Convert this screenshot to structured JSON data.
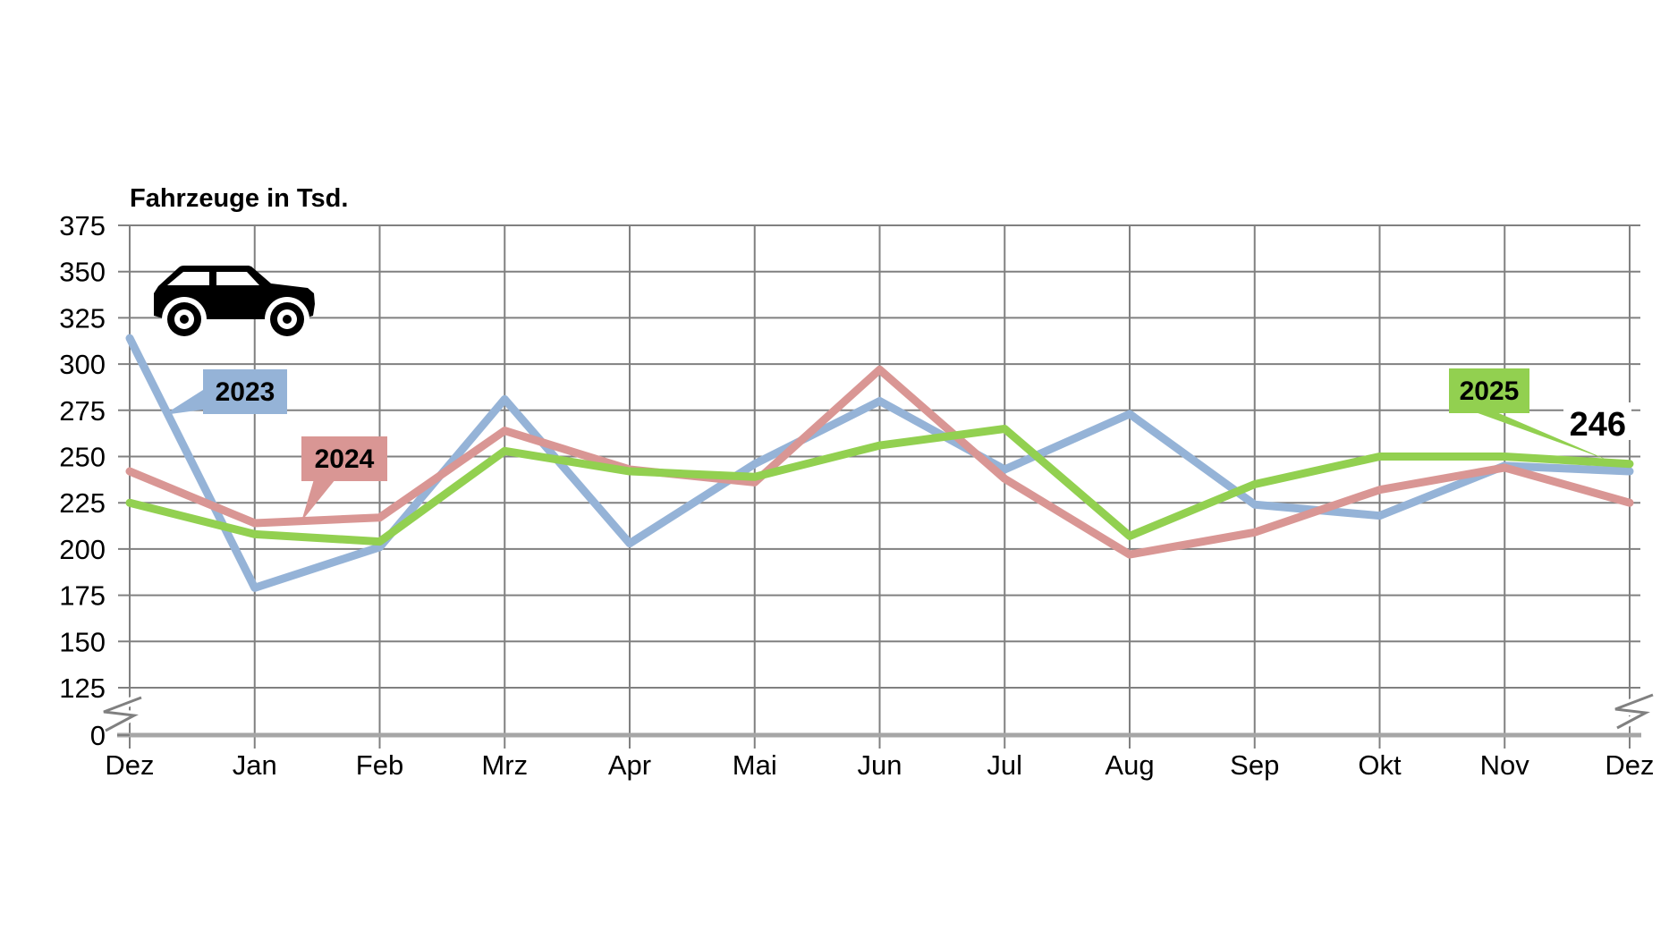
{
  "title": "Fahrzeuge in Tsd.",
  "chart_data": {
    "type": "line",
    "title": "Fahrzeuge in Tsd.",
    "unit_icon": "car-icon",
    "categories": [
      "Dez",
      "Jan",
      "Feb",
      "Mrz",
      "Apr",
      "Mai",
      "Jun",
      "Jul",
      "Aug",
      "Sep",
      "Okt",
      "Nov",
      "Dez"
    ],
    "series": [
      {
        "name": "2023",
        "color": "#95B3D7",
        "values": [
          314,
          179,
          201,
          281,
          203,
          246,
          280,
          243,
          273,
          224,
          218,
          245,
          242
        ]
      },
      {
        "name": "2024",
        "color": "#D99694",
        "values": [
          242,
          214,
          217,
          264,
          243,
          236,
          297,
          238,
          197,
          209,
          232,
          244,
          225
        ]
      },
      {
        "name": "2025",
        "color": "#92D050",
        "values": [
          225,
          208,
          204,
          253,
          242,
          239,
          256,
          265,
          207,
          235,
          250,
          250,
          246
        ]
      }
    ],
    "y_axis": {
      "ticks": [
        375,
        350,
        325,
        300,
        275,
        250,
        225,
        200,
        175,
        150,
        125,
        0
      ],
      "axis_break_between": [
        0,
        125
      ]
    },
    "x_axis": {
      "ticks": [
        "Dez",
        "Jan",
        "Feb",
        "Mrz",
        "Apr",
        "Mai",
        "Jun",
        "Jul",
        "Aug",
        "Sep",
        "Okt",
        "Nov",
        "Dez"
      ]
    },
    "end_value_label": "246",
    "grid": true,
    "legend": "callout-boxes",
    "colors": {
      "grid": "#808080",
      "baseline": "#A6A6A6",
      "text": "#000000"
    }
  }
}
